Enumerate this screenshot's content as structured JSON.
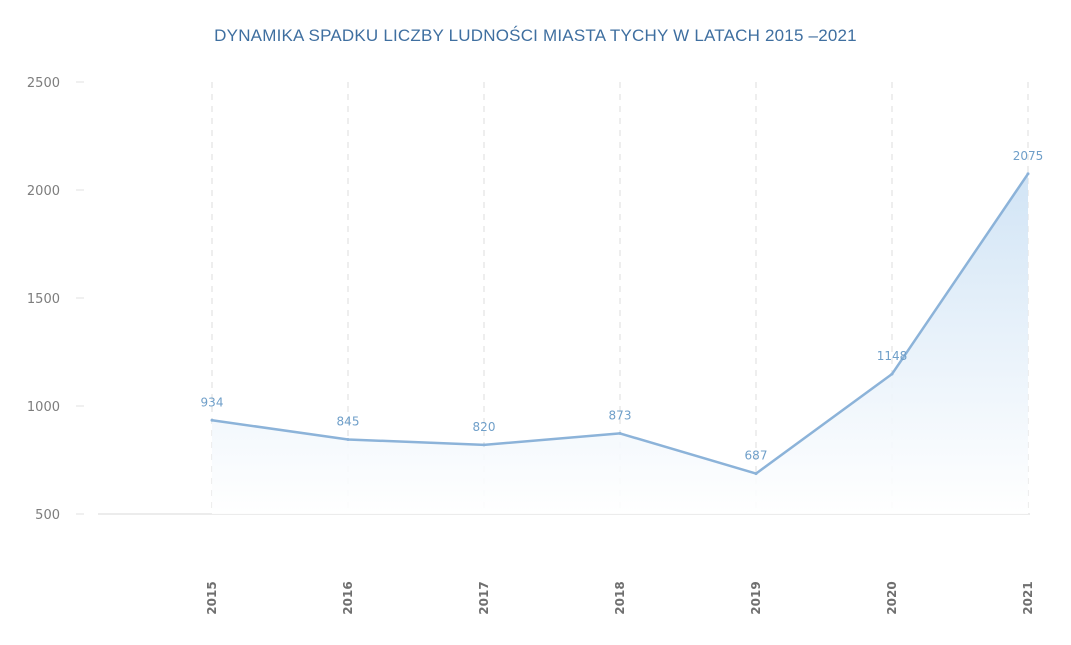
{
  "chart_data": {
    "type": "area",
    "title": "DYNAMIKA SPADKU LICZBY LUDNOŚCI MIASTA TYCHY W LATACH 2015 –2021",
    "xlabel": "",
    "ylabel": "",
    "categories": [
      "2015",
      "2016",
      "2017",
      "2018",
      "2019",
      "2020",
      "2021"
    ],
    "values": [
      934,
      845,
      820,
      873,
      687,
      1148,
      2075
    ],
    "ylim": [
      500,
      2500
    ],
    "yticks": [
      500,
      1000,
      1500,
      2000,
      2500
    ],
    "grid": "vertical-dashed",
    "legend": "none",
    "colors": {
      "line": "#8cb3d9",
      "fill": "#cfe3f5",
      "title": "#3f6fa0"
    }
  }
}
